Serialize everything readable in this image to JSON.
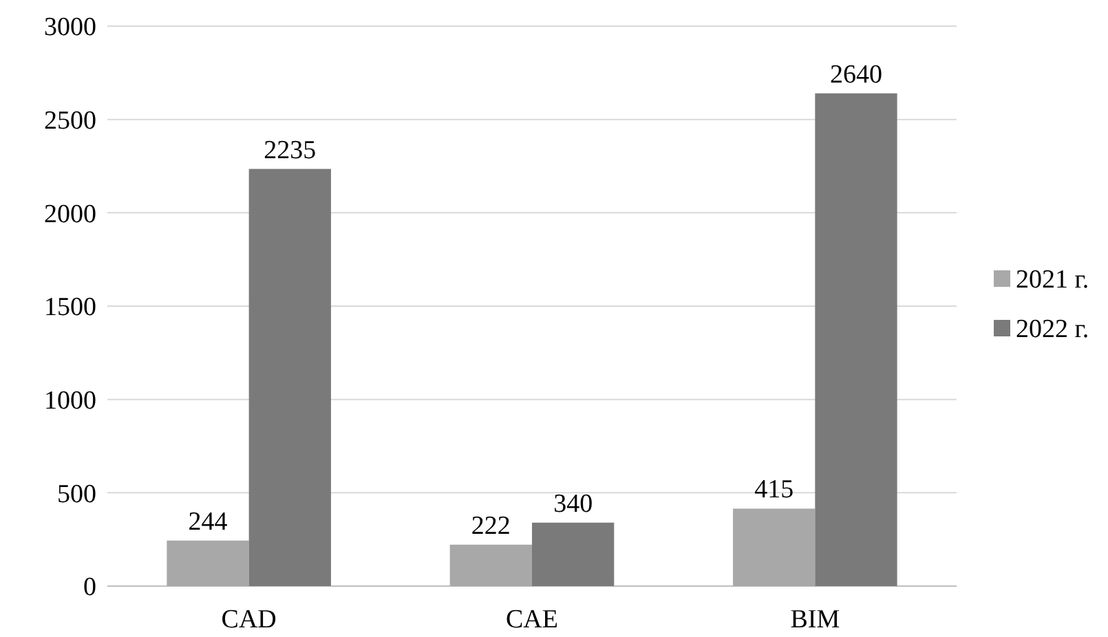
{
  "chart_data": {
    "type": "bar",
    "categories": [
      "CAD",
      "CAE",
      "BIM"
    ],
    "series": [
      {
        "name": "2021 г.",
        "color": "#a8a8a8",
        "values": [
          244,
          222,
          415
        ]
      },
      {
        "name": "2022 г.",
        "color": "#7a7a7a",
        "values": [
          2235,
          340,
          2640
        ]
      }
    ],
    "ylim": [
      0,
      3000
    ],
    "yticks": [
      0,
      500,
      1000,
      1500,
      2000,
      2500,
      3000
    ],
    "grid": "y",
    "legend": "right",
    "data_labels": true
  }
}
